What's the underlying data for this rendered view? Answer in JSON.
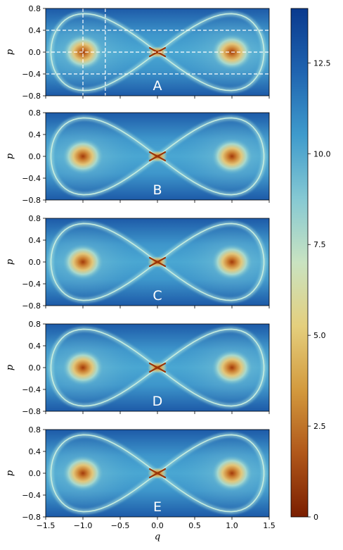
{
  "chart_data": {
    "type": "heatmap",
    "title": "",
    "panels": [
      {
        "label": "A",
        "show_guides": true
      },
      {
        "label": "B",
        "show_guides": false
      },
      {
        "label": "C",
        "show_guides": false
      },
      {
        "label": "D",
        "show_guides": false
      },
      {
        "label": "E",
        "show_guides": false
      }
    ],
    "xlabel": "q",
    "ylabel": "p",
    "xlim": [
      -1.5,
      1.5
    ],
    "ylim": [
      -0.8,
      0.8
    ],
    "x_ticks": [
      "−1.5",
      "−1.0",
      "−0.5",
      "0.0",
      "0.5",
      "1.0",
      "1.5"
    ],
    "x_tick_values": [
      -1.5,
      -1.0,
      -0.5,
      0.0,
      0.5,
      1.0,
      1.5
    ],
    "y_ticks": [
      "0.8",
      "0.4",
      "0.0",
      "−0.4",
      "−0.8"
    ],
    "y_tick_values": [
      0.8,
      0.4,
      0.0,
      -0.4,
      -0.8
    ],
    "guide_lines": {
      "vertical_q": [
        -1.0,
        -0.7
      ],
      "horizontal_p": [
        0.4,
        0.0,
        -0.4
      ],
      "color": "#ffffff"
    },
    "colorbar": {
      "range": [
        0,
        14
      ],
      "ticks": [
        "0",
        "2.5",
        "5.0",
        "7.5",
        "10.0",
        "12.5"
      ],
      "tick_values": [
        0,
        2.5,
        5.0,
        7.5,
        10.0,
        12.5
      ],
      "colormap": [
        "#7a1e00",
        "#b0571a",
        "#d39a3e",
        "#e4cf7d",
        "#c9e3c1",
        "#86c9d3",
        "#3f9bcc",
        "#1f64b0",
        "#0a3a8e"
      ]
    },
    "centers_q": [
      -1.0,
      0.0,
      1.0
    ],
    "center_p": 0.0
  }
}
